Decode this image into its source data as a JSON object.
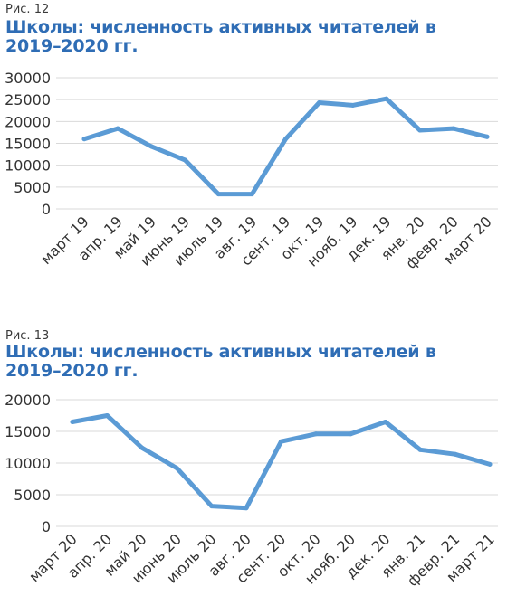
{
  "chart_data": [
    {
      "type": "line",
      "fig_label": "Рис. 12",
      "title": "Школы: численность активных читателей в 2019–2020 гг.",
      "categories": [
        "март 19",
        "апр. 19",
        "май 19",
        "июнь 19",
        "июль 19",
        "авг. 19",
        "сент. 19",
        "окт. 19",
        "нояб. 19",
        "дек. 19",
        "янв. 20",
        "февр. 20",
        "март 20"
      ],
      "values": [
        16000,
        18400,
        14300,
        11200,
        3400,
        3400,
        16000,
        24300,
        23700,
        25200,
        18000,
        18400,
        16500
      ],
      "yticks": [
        "0",
        "5000",
        "10000",
        "15000",
        "20000",
        "25000",
        "30000"
      ],
      "ylim": [
        0,
        30000
      ],
      "grid": true,
      "color": "#5b9bd5"
    },
    {
      "type": "line",
      "fig_label": "Рис. 13",
      "title": "Школы: численность активных читателей в 2019–2020 гг.",
      "categories": [
        "март 20",
        "апр. 20",
        "май 20",
        "июнь 20",
        "июль 20",
        "авг. 20",
        "сент. 20",
        "окт. 20",
        "нояб. 20",
        "дек. 20",
        "янв. 21",
        "февр. 21",
        "март 21"
      ],
      "values": [
        16500,
        17500,
        12400,
        9200,
        3200,
        2900,
        13400,
        14600,
        14600,
        16500,
        12100,
        11400,
        9800
      ],
      "yticks": [
        "0",
        "5000",
        "10000",
        "15000",
        "20000"
      ],
      "ylim": [
        0,
        20000
      ],
      "grid": true,
      "color": "#5b9bd5"
    }
  ]
}
